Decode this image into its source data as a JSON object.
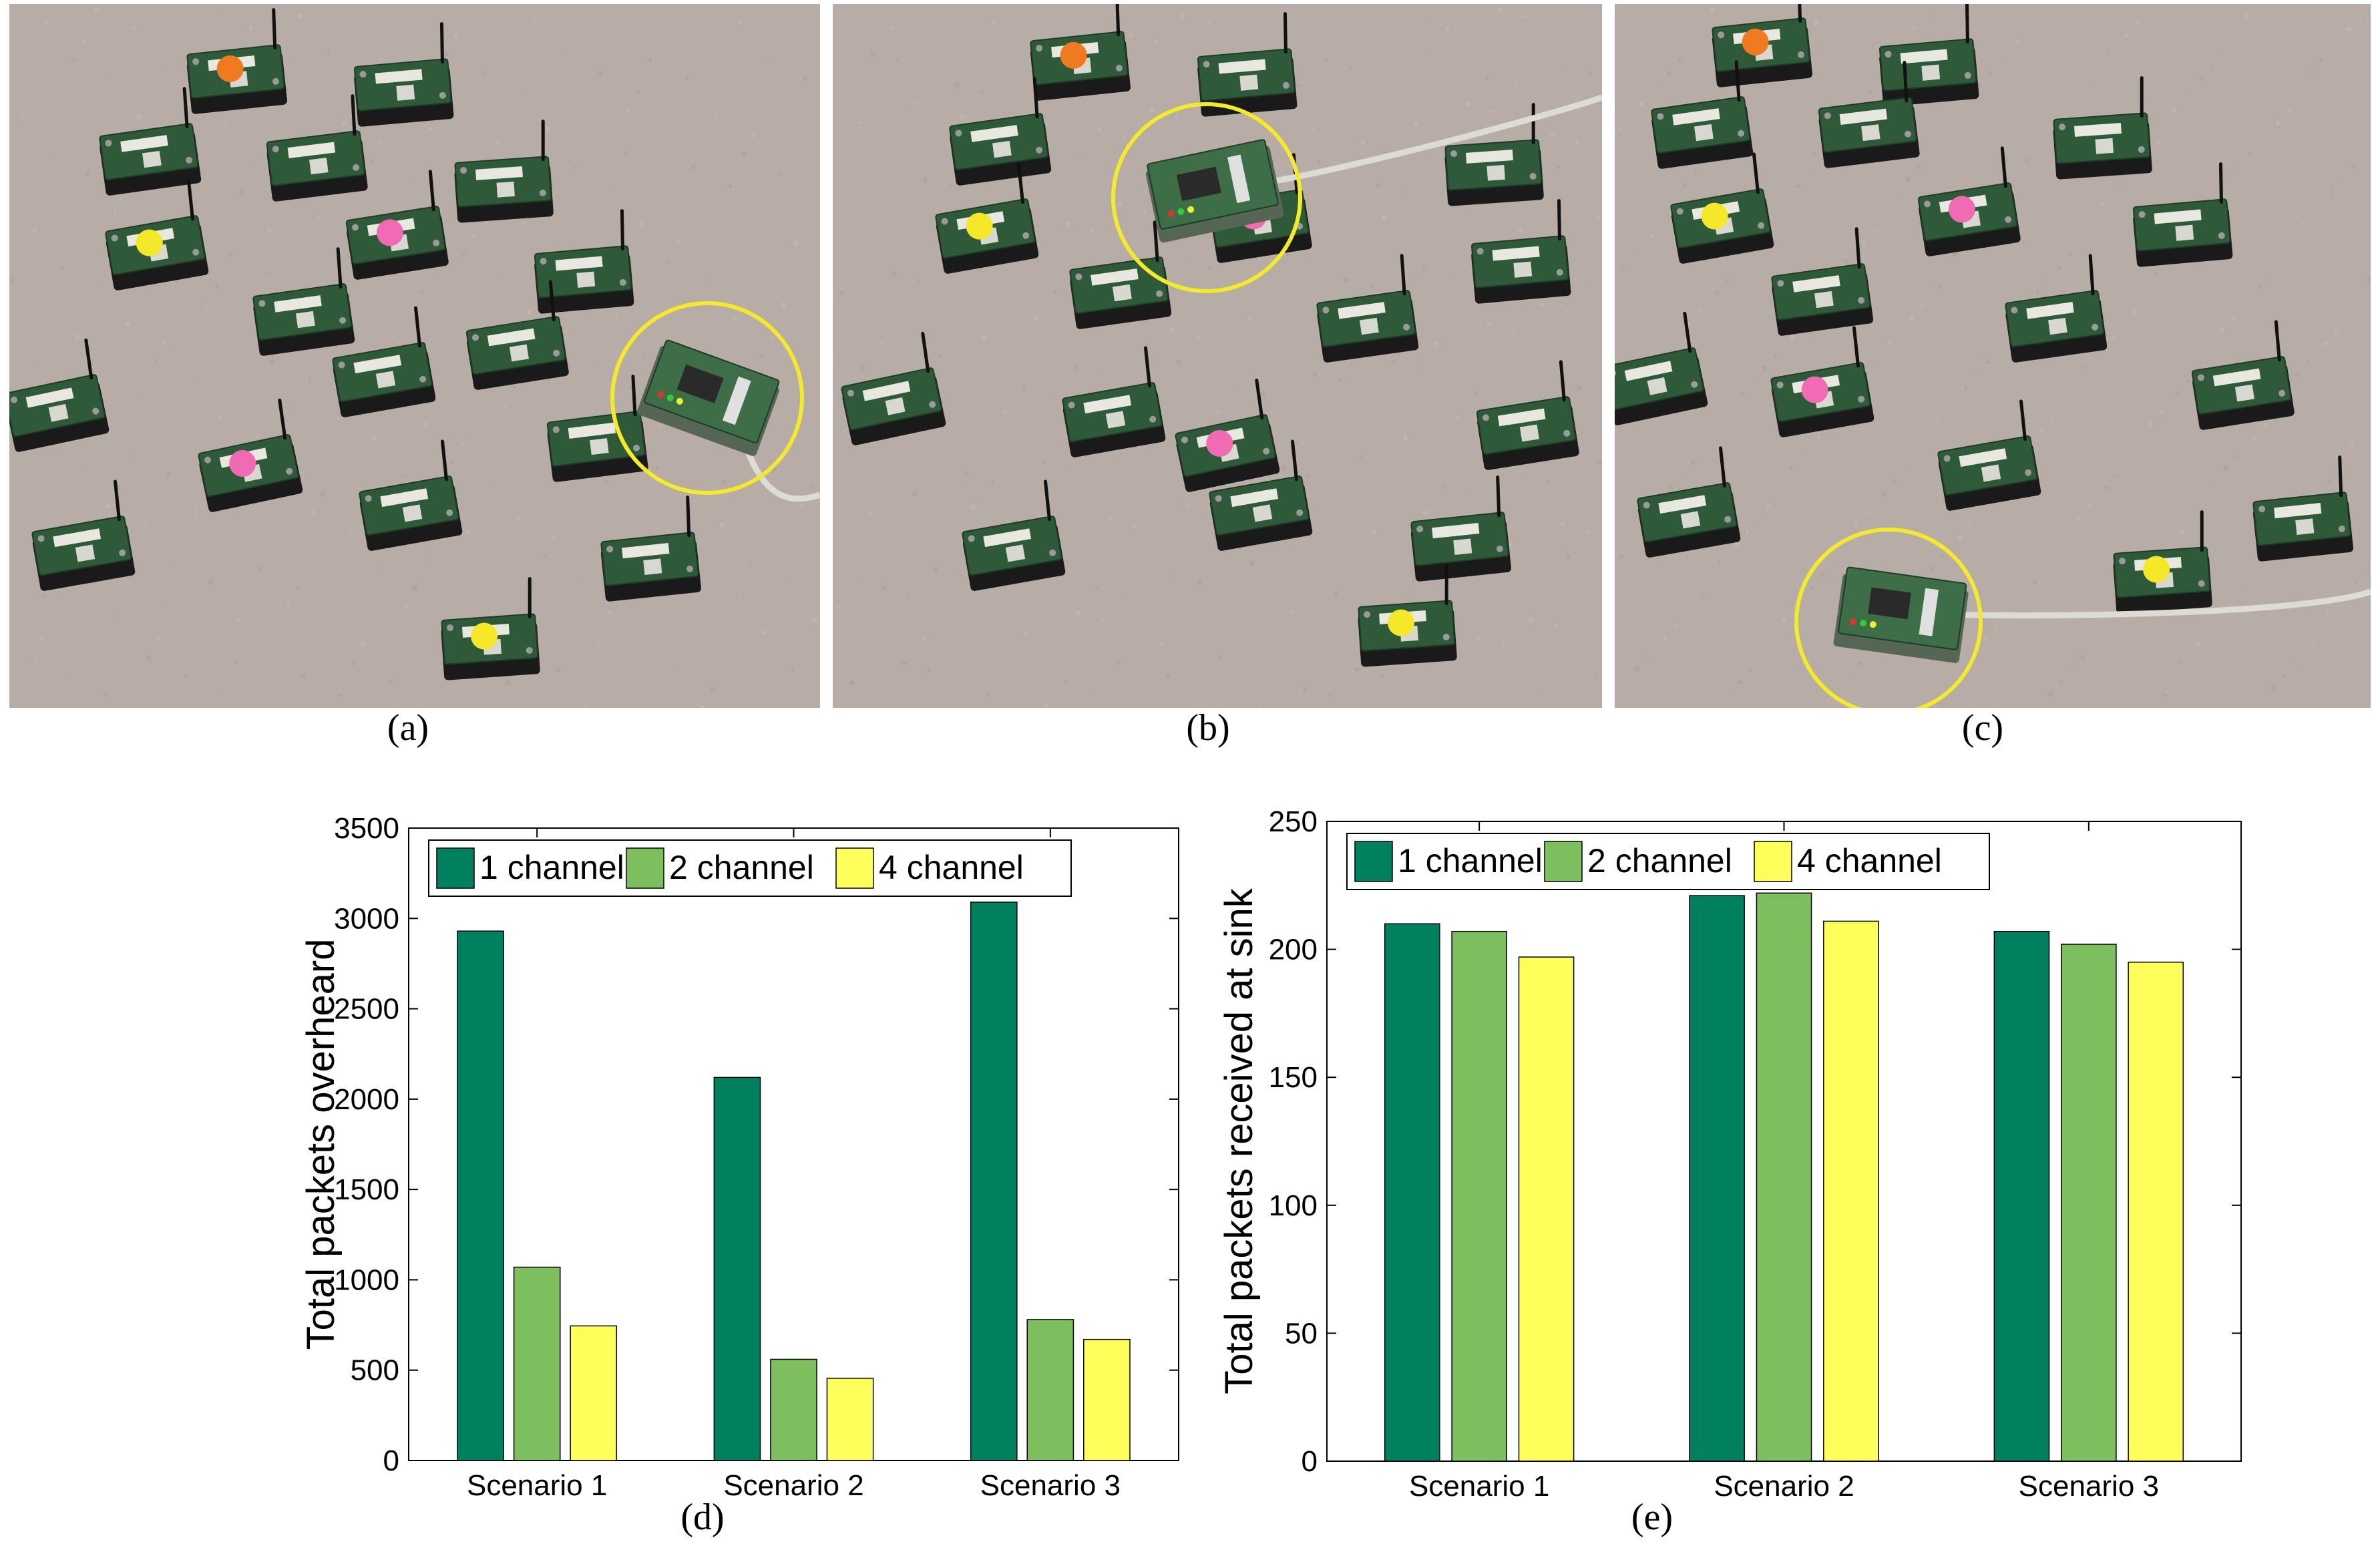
{
  "colors": {
    "carpet": "#b8aca6",
    "board": "#2f5a3a",
    "case": "#1a1a1a",
    "highlight": "#f2ea2a",
    "sticker_yellow": "#f4e829",
    "sticker_pink": "#f06ab4",
    "sticker_orange": "#f07a20",
    "cable": "#dcdcd4",
    "series_1": "#00805e",
    "series_2": "#7dbf5e",
    "series_3": "#ffff5c"
  },
  "panel_labels": {
    "a": "(a)",
    "b": "(b)",
    "c": "(c)",
    "d": "(d)",
    "e": "(e)"
  },
  "chart_data": [
    {
      "type": "bar",
      "categories": [
        "Scenario 1",
        "Scenario 2",
        "Scenario 3"
      ],
      "series": [
        {
          "name": "1 channel",
          "values": [
            2930,
            2120,
            3090
          ]
        },
        {
          "name": "2 channel",
          "values": [
            1070,
            560,
            780
          ]
        },
        {
          "name": "4 channel",
          "values": [
            745,
            455,
            670
          ]
        }
      ],
      "ylabel": "Total packets overheard",
      "ylim": [
        0,
        3500
      ],
      "yticks": [
        0,
        500,
        1000,
        1500,
        2000,
        2500,
        3000,
        3500
      ],
      "legend": "top"
    },
    {
      "type": "bar",
      "categories": [
        "Scenario 1",
        "Scenario 2",
        "Scenario 3"
      ],
      "series": [
        {
          "name": "1 channel",
          "values": [
            210,
            221,
            207
          ]
        },
        {
          "name": "2 channel",
          "values": [
            207,
            222,
            202
          ]
        },
        {
          "name": "4 channel",
          "values": [
            197,
            211,
            195
          ]
        }
      ],
      "ylabel": "Total packets received at sink",
      "ylim": [
        0,
        250
      ],
      "yticks": [
        0,
        50,
        100,
        150,
        200,
        250
      ],
      "legend": "top"
    }
  ]
}
